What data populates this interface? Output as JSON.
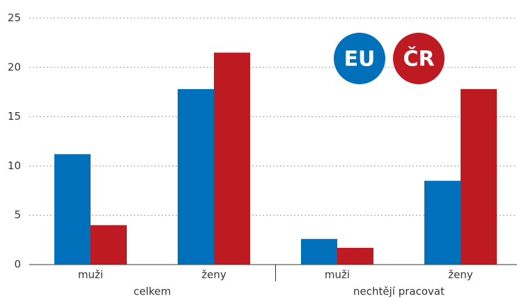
{
  "chart_data": {
    "type": "bar",
    "categories": [
      "muži",
      "ženy",
      "muži",
      "ženy"
    ],
    "groups": [
      "celkem",
      "nechtějí pracovat"
    ],
    "series": [
      {
        "name": "EU",
        "color": "#0070bb",
        "values": [
          11.2,
          17.8,
          2.6,
          8.5
        ]
      },
      {
        "name": "ČR",
        "color": "#be1a21",
        "values": [
          4.0,
          21.5,
          1.7,
          17.8
        ]
      }
    ],
    "ylim": [
      0,
      25
    ],
    "yticks": [
      0,
      5,
      10,
      15,
      20,
      25
    ],
    "grid": true
  }
}
